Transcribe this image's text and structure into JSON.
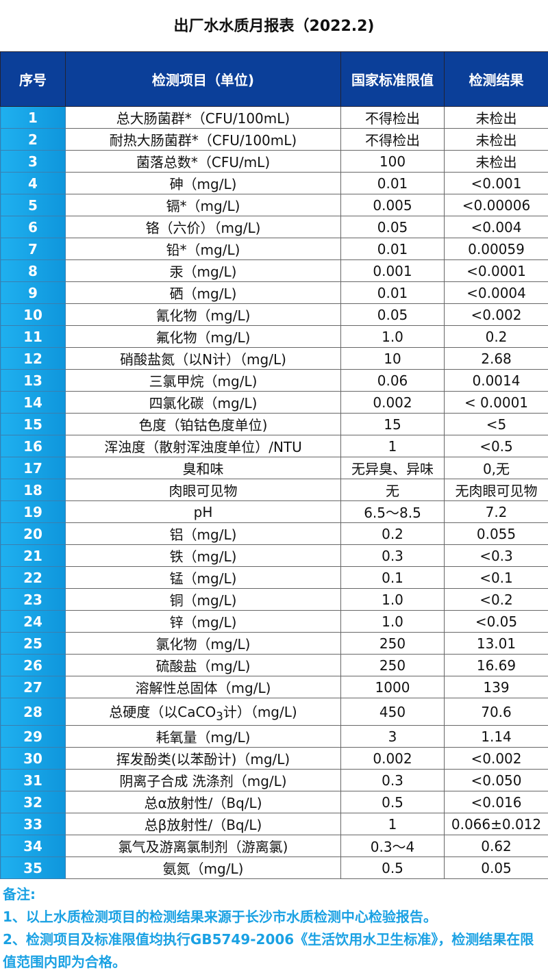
{
  "title": "出厂水水质月报表（2022.2)",
  "headers": [
    "序号",
    "检测项目（单位)",
    "国家标准限值",
    "检测结果"
  ],
  "rows": [
    [
      "1",
      "总大肠菌群*（CFU/100mL)",
      "不得检出",
      "未检出"
    ],
    [
      "2",
      "耐热大肠菌群*（CFU/100mL)",
      "不得检出",
      "未检出"
    ],
    [
      "3",
      "菌落总数*（CFU/mL)",
      "100",
      "未检出"
    ],
    [
      "4",
      "砷（mg/L)",
      "0.01",
      "<0.001"
    ],
    [
      "5",
      "镉*（mg/L)",
      "0.005",
      "<0.00006"
    ],
    [
      "6",
      "铬（六价）（mg/L)",
      "0.05",
      "<0.004"
    ],
    [
      "7",
      "铅*（mg/L)",
      "0.01",
      "0.00059"
    ],
    [
      "8",
      "汞（mg/L)",
      "0.001",
      "<0.0001"
    ],
    [
      "9",
      "硒（mg/L)",
      "0.01",
      "<0.0004"
    ],
    [
      "10",
      "氰化物（mg/L)",
      "0.05",
      "<0.002"
    ],
    [
      "11",
      "氟化物（mg/L)",
      "1.0",
      "0.2"
    ],
    [
      "12",
      "硝酸盐氮（以N计）（mg/L)",
      "10",
      "2.68"
    ],
    [
      "13",
      "三氯甲烷（mg/L)",
      "0.06",
      "0.0014"
    ],
    [
      "14",
      "四氯化碳（mg/L)",
      "0.002",
      "< 0.0001"
    ],
    [
      "15",
      "色度（铂钴色度单位)",
      "15",
      "<5"
    ],
    [
      "16",
      "浑浊度（散射浑浊度单位）/NTU",
      "1",
      "<0.5"
    ],
    [
      "17",
      "臭和味",
      "无异臭、异味",
      "0,无"
    ],
    [
      "18",
      "肉眼可见物",
      "无",
      "无肉眼可见物"
    ],
    [
      "19",
      "pH",
      "6.5～8.5",
      "7.2"
    ],
    [
      "20",
      "铝（mg/L)",
      "0.2",
      "0.055"
    ],
    [
      "21",
      "铁（mg/L)",
      "0.3",
      "<0.3"
    ],
    [
      "22",
      "锰（mg/L)",
      "0.1",
      "<0.1"
    ],
    [
      "23",
      "铜（mg/L)",
      "1.0",
      "<0.2"
    ],
    [
      "24",
      "锌（mg/L)",
      "1.0",
      "<0.05"
    ],
    [
      "25",
      "氯化物（mg/L)",
      "250",
      "13.01"
    ],
    [
      "26",
      "硫酸盐（mg/L)",
      "250",
      "16.69"
    ],
    [
      "27",
      "溶解性总固体（mg/L)",
      "1000",
      "139"
    ],
    [
      "28",
      "总硬度（以CaCO3计）（mg/L)",
      "450",
      "70.6"
    ],
    [
      "29",
      "耗氧量（mg/L)",
      "3",
      "1.14"
    ],
    [
      "30",
      "挥发酚类(以苯酚计)（mg/L)",
      "0.002",
      "<0.002"
    ],
    [
      "31",
      "阴离子合成 洗涤剂（mg/L)",
      "0.3",
      "<0.050"
    ],
    [
      "32",
      "总α放射性/（Bq/L)",
      "0.5",
      "<0.016"
    ],
    [
      "33",
      "总β放射性/（Bq/L)",
      "1",
      "0.066±0.012"
    ],
    [
      "34",
      "氯气及游离氯制剂（游离氯)",
      "0.3～4",
      "0.62"
    ],
    [
      "35",
      "氨氮（mg/L)",
      "0.5",
      "0.05"
    ]
  ],
  "row28_parts": [
    "总硬度（以CaCO",
    "3",
    "计）（mg/L)"
  ],
  "notes": {
    "heading": "备注:",
    "line1": "1、以上水质检测项目的检测结果来源于长沙市水质检测中心检验报告。",
    "line2": "2、检测项目及标准限值均执行GB5749-2006《生活饮用水卫生标准》，检测结果在限值范围内即为合格。"
  },
  "colors": {
    "header": "#0b3f99",
    "number_column": "#1aa3e8",
    "notes": "#1aa1e3"
  }
}
